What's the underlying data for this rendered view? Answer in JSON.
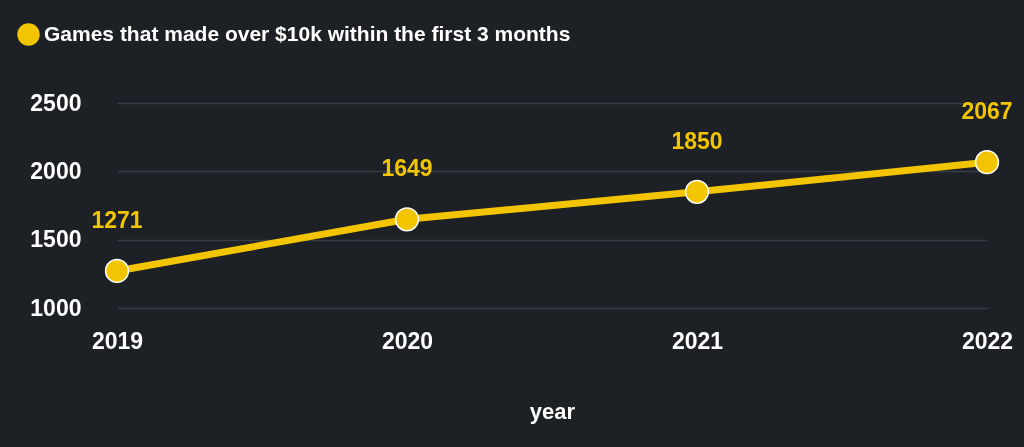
{
  "chart_data": {
    "type": "line",
    "categories": [
      "2019",
      "2020",
      "2021",
      "2022"
    ],
    "series": [
      {
        "name": "Games that made over $10k within the first 3 months",
        "color": "#f2c500",
        "values": [
          1271,
          1649,
          1850,
          2067
        ]
      }
    ],
    "xlabel": "year",
    "ylim": [
      1000,
      2500
    ],
    "yticks": [
      1000,
      1500,
      2000,
      2500
    ],
    "grid": "y",
    "legend": "top left",
    "marker": "circle",
    "data_labels": true
  }
}
